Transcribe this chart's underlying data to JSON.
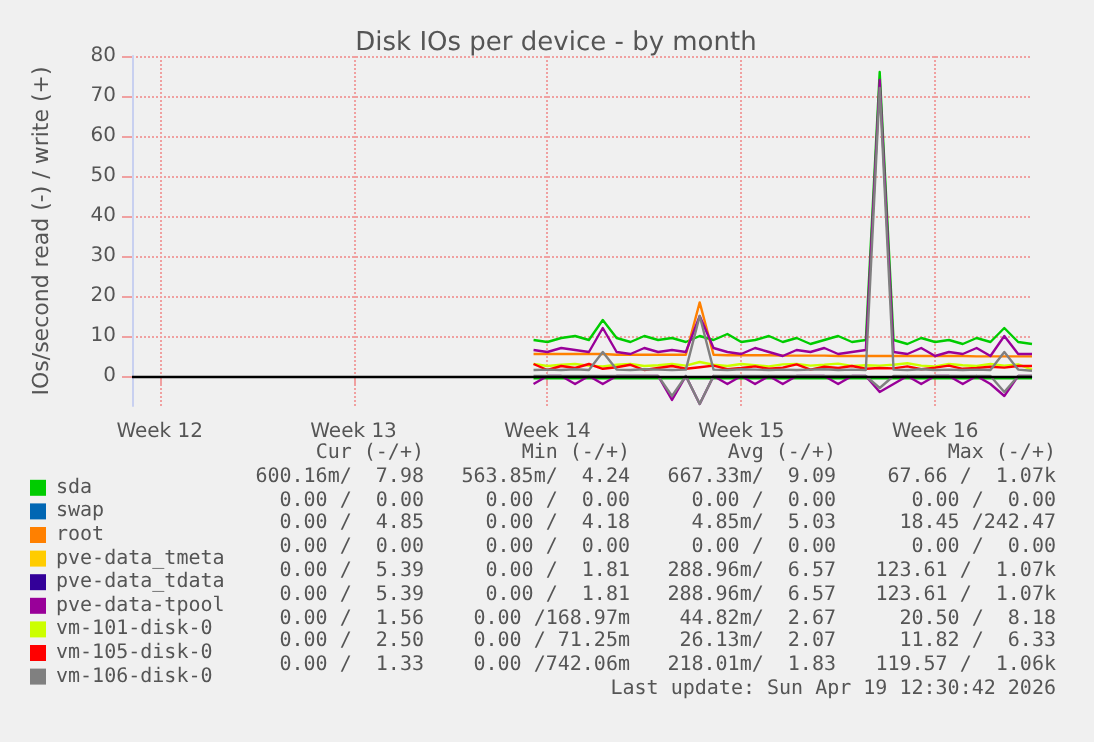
{
  "chart_data": {
    "type": "line",
    "title": "Disk IOs per device - by month",
    "ylabel": "IOs/second read (-) / write (+)",
    "categories": [
      null,
      null,
      "Week 12",
      null,
      null,
      null,
      null,
      null,
      null,
      null,
      null,
      null,
      null,
      null,
      null,
      null,
      "Week 13",
      null,
      null,
      null,
      null,
      null,
      null,
      null,
      null,
      null,
      null,
      null,
      null,
      null,
      "Week 14",
      null,
      null,
      null,
      null,
      null,
      null,
      null,
      null,
      null,
      null,
      null,
      null,
      null,
      "Week 15",
      null,
      null,
      null,
      null,
      null,
      null,
      null,
      null,
      null,
      null,
      null,
      null,
      null,
      "Week 16",
      null,
      null,
      null,
      null,
      null,
      null,
      null
    ],
    "ylim": [
      -7.5,
      80
    ],
    "yticks": [
      0,
      10,
      20,
      30,
      40,
      50,
      60,
      70,
      80
    ],
    "grid": true,
    "legend": "bottom",
    "line_style": "solid",
    "ref_lines": [
      {
        "axis": "y",
        "value": 0,
        "color": "#000000"
      }
    ],
    "series": [
      {
        "name": "sda",
        "color": "#00cc00",
        "values": [
          null,
          null,
          null,
          null,
          null,
          null,
          null,
          null,
          null,
          null,
          null,
          null,
          null,
          null,
          null,
          null,
          null,
          null,
          null,
          null,
          null,
          null,
          null,
          null,
          null,
          null,
          null,
          null,
          null,
          9,
          8.5,
          9.5,
          10,
          9,
          14,
          9.5,
          8.5,
          10,
          9,
          9.5,
          8.5,
          10,
          9,
          10.5,
          8.5,
          9,
          10,
          8.5,
          9.5,
          8,
          9,
          10,
          8.5,
          9,
          76,
          9,
          8,
          9.5,
          8.5,
          9,
          8,
          9.5,
          8.5,
          12,
          8.5,
          8
        ]
      },
      {
        "color": "#00cc00",
        "values": [
          null,
          null,
          null,
          null,
          null,
          null,
          null,
          null,
          null,
          null,
          null,
          null,
          null,
          null,
          null,
          null,
          null,
          null,
          null,
          null,
          null,
          null,
          null,
          null,
          null,
          null,
          null,
          null,
          null,
          -0.6,
          -0.6,
          -0.6,
          -0.6,
          -0.6,
          -0.6,
          -0.6,
          -0.6,
          -0.6,
          -0.6,
          -0.6,
          -0.6,
          -0.6,
          -0.6,
          -0.6,
          -0.6,
          -0.6,
          -0.6,
          -0.6,
          -0.6,
          -0.6,
          -0.6,
          -0.6,
          -0.6,
          -0.6,
          -0.6,
          -0.6,
          -0.6,
          -0.6,
          -0.6,
          -0.6,
          -0.6,
          -0.6,
          -0.6,
          -0.6,
          -0.6,
          -0.6
        ]
      },
      {
        "name": "swap",
        "color": "#0066b3",
        "values": [
          null,
          null,
          null,
          null,
          null,
          null,
          null,
          null,
          null,
          null,
          null,
          null,
          null,
          null,
          null,
          null,
          null,
          null,
          null,
          null,
          null,
          null,
          null,
          null,
          null,
          null,
          null,
          null,
          null,
          null,
          null,
          null,
          null,
          null,
          null,
          null,
          null,
          null,
          null,
          null,
          null,
          null,
          null,
          null,
          null,
          null,
          null,
          null,
          null,
          null,
          null,
          null,
          null,
          null,
          null,
          null,
          null,
          null,
          null,
          null,
          null,
          null,
          null,
          null,
          null,
          null
        ]
      },
      {
        "name": "root",
        "color": "#ff8000",
        "values": [
          null,
          null,
          null,
          null,
          null,
          null,
          null,
          null,
          null,
          null,
          null,
          null,
          null,
          null,
          null,
          null,
          null,
          null,
          null,
          null,
          null,
          null,
          null,
          null,
          null,
          null,
          null,
          null,
          null,
          5.5,
          5.5,
          5.5,
          5.5,
          5.5,
          5.5,
          5.3,
          5.3,
          5.3,
          5.3,
          5.3,
          5.3,
          18.4,
          5.3,
          5.2,
          5.2,
          5.2,
          5.2,
          5.1,
          5.1,
          5.1,
          5.1,
          5,
          5,
          5,
          5,
          5,
          5,
          5,
          5,
          5,
          5,
          4.9,
          4.9,
          4.9,
          4.9,
          4.9
        ]
      },
      {
        "name": "pve-data_tmeta",
        "color": "#ffcc00",
        "values": [
          null,
          null,
          null,
          null,
          null,
          null,
          null,
          null,
          null,
          null,
          null,
          null,
          null,
          null,
          null,
          null,
          null,
          null,
          null,
          null,
          null,
          null,
          null,
          null,
          null,
          null,
          null,
          null,
          null,
          null,
          null,
          null,
          null,
          null,
          null,
          null,
          null,
          null,
          null,
          null,
          null,
          null,
          null,
          null,
          null,
          null,
          null,
          null,
          null,
          null,
          null,
          null,
          null,
          null,
          null,
          null,
          null,
          null,
          null,
          null,
          null,
          null,
          null,
          null,
          null,
          null
        ]
      },
      {
        "name": "pve-data_tdata",
        "color": "#330099",
        "values": [
          null,
          null,
          null,
          null,
          null,
          null,
          null,
          null,
          null,
          null,
          null,
          null,
          null,
          null,
          null,
          null,
          null,
          null,
          null,
          null,
          null,
          null,
          null,
          null,
          null,
          null,
          null,
          null,
          null,
          null,
          null,
          null,
          null,
          null,
          null,
          null,
          null,
          null,
          null,
          null,
          null,
          null,
          null,
          null,
          null,
          null,
          null,
          null,
          null,
          null,
          null,
          null,
          null,
          null,
          null,
          null,
          null,
          null,
          null,
          null,
          null,
          null,
          null,
          null,
          null,
          null
        ]
      },
      {
        "name": "pve-data-tpool",
        "color": "#990099",
        "values": [
          null,
          null,
          null,
          null,
          null,
          null,
          null,
          null,
          null,
          null,
          null,
          null,
          null,
          null,
          null,
          null,
          null,
          null,
          null,
          null,
          null,
          null,
          null,
          null,
          null,
          null,
          null,
          null,
          null,
          6.5,
          6,
          7,
          6.5,
          6,
          12,
          6,
          5.5,
          7,
          6,
          6.5,
          6,
          15,
          7,
          6,
          5.5,
          7,
          6,
          5,
          6.5,
          6,
          7,
          5.5,
          6,
          6.5,
          74,
          6,
          5.5,
          7,
          5,
          6,
          5.5,
          7,
          5,
          10,
          5.5,
          5.5
        ]
      },
      {
        "color": "#990099",
        "values": [
          null,
          null,
          null,
          null,
          null,
          null,
          null,
          null,
          null,
          null,
          null,
          null,
          null,
          null,
          null,
          null,
          null,
          null,
          null,
          null,
          null,
          null,
          null,
          null,
          null,
          null,
          null,
          null,
          null,
          -2,
          0,
          0,
          -2,
          0,
          -2,
          0,
          0,
          0,
          0,
          -6,
          0,
          -7,
          0,
          -2,
          0,
          -2,
          0,
          -2,
          0,
          0,
          0,
          -2,
          0,
          0,
          -4,
          -2,
          0,
          -2,
          0,
          0,
          -2,
          0,
          -2,
          -5,
          0,
          0
        ]
      },
      {
        "name": "vm-101-disk-0",
        "color": "#ccff00",
        "values": [
          null,
          null,
          null,
          null,
          null,
          null,
          null,
          null,
          null,
          null,
          null,
          null,
          null,
          null,
          null,
          null,
          null,
          null,
          null,
          null,
          null,
          null,
          null,
          null,
          null,
          null,
          null,
          null,
          null,
          3,
          2.5,
          2.8,
          3,
          2.6,
          2.4,
          2.8,
          3,
          2.5,
          2.7,
          3,
          2.6,
          3.5,
          2.8,
          2.5,
          3,
          2.7,
          2.4,
          2.9,
          3,
          2.6,
          2.8,
          3.1,
          2.5,
          2.7,
          2.6,
          2.8,
          3.2,
          2.6,
          2.4,
          3,
          2.7,
          2.5,
          3,
          2.6,
          2.9,
          1.6
        ]
      },
      {
        "name": "vm-105-disk-0",
        "color": "#ff0000",
        "values": [
          null,
          null,
          null,
          null,
          null,
          null,
          null,
          null,
          null,
          null,
          null,
          null,
          null,
          null,
          null,
          null,
          null,
          null,
          null,
          null,
          null,
          null,
          null,
          null,
          null,
          null,
          null,
          null,
          null,
          3,
          1.5,
          2.5,
          2,
          3,
          1.8,
          2.2,
          2.8,
          1.5,
          2,
          2.5,
          1.8,
          2.2,
          2.6,
          1.7,
          2,
          2.4,
          1.8,
          2.1,
          2.9,
          1.6,
          2.3,
          2,
          2.5,
          1.8,
          2,
          1.9,
          2.4,
          1.7,
          2.1,
          2.6,
          1.8,
          2,
          2.3,
          2.1,
          2.5,
          2.5
        ]
      },
      {
        "name": "vm-106-disk-0",
        "color": "#808080",
        "values": [
          null,
          null,
          null,
          null,
          null,
          null,
          null,
          null,
          null,
          null,
          null,
          null,
          null,
          null,
          null,
          null,
          null,
          null,
          null,
          null,
          null,
          null,
          null,
          null,
          null,
          null,
          null,
          null,
          null,
          1.5,
          1.6,
          1.5,
          1.7,
          1.5,
          6,
          1.6,
          1.5,
          1.7,
          1.6,
          1.5,
          1.6,
          15,
          1.6,
          1.5,
          1.7,
          1.6,
          1.5,
          1.6,
          1.5,
          1.6,
          1.7,
          1.5,
          1.6,
          1.5,
          72,
          1.6,
          1.5,
          1.7,
          1.5,
          1.6,
          1.5,
          1.6,
          1.5,
          6,
          1.6,
          1.3
        ]
      },
      {
        "color": "#808080",
        "values": [
          null,
          null,
          null,
          null,
          null,
          null,
          null,
          null,
          null,
          null,
          null,
          null,
          null,
          null,
          null,
          null,
          null,
          null,
          null,
          null,
          null,
          null,
          null,
          null,
          null,
          null,
          null,
          null,
          null,
          0,
          0,
          0,
          0,
          0,
          0,
          0,
          0,
          0,
          0,
          -5,
          0,
          -7,
          0,
          0,
          0,
          0,
          0,
          0,
          0,
          0,
          0,
          0,
          0,
          0,
          -3,
          0,
          0,
          0,
          0,
          0,
          0,
          0,
          0,
          -4,
          0,
          0
        ]
      }
    ],
    "annotations": [
      "Cur (-/+)",
      "Min (-/+)",
      "Avg (-/+)",
      "Max (-/+)",
      "600.16m/  7.98",
      "563.85m/  4.24",
      "667.33m/  9.09",
      "67.66 /  1.07k",
      "0.00 /  0.00",
      "0.00 /  0.00",
      "0.00 /  0.00",
      "0.00 /  0.00",
      "0.00 /  4.85",
      "0.00 /  4.18",
      "4.85m/  5.03",
      "18.45 /242.47",
      "0.00 /  0.00",
      "0.00 /  0.00",
      "0.00 /  0.00",
      "0.00 /  0.00",
      "0.00 /  5.39",
      "0.00 /  1.81",
      "288.96m/  6.57",
      "123.61 /  1.07k",
      "0.00 /  5.39",
      "0.00 /  1.81",
      "288.96m/  6.57",
      "123.61 /  1.07k",
      "0.00 /  1.56",
      "0.00 /168.97m",
      "44.82m/  2.67",
      "20.50 /  8.18",
      "0.00 /  2.50",
      "0.00 / 71.25m",
      "26.13m/  2.07",
      "11.82 /  6.33",
      "0.00 /  1.33",
      "0.00 /742.06m",
      "218.01m/  1.83",
      "119.57 /  1.06k",
      "Last update: Sun Apr 19 12:30:42 2026"
    ]
  }
}
